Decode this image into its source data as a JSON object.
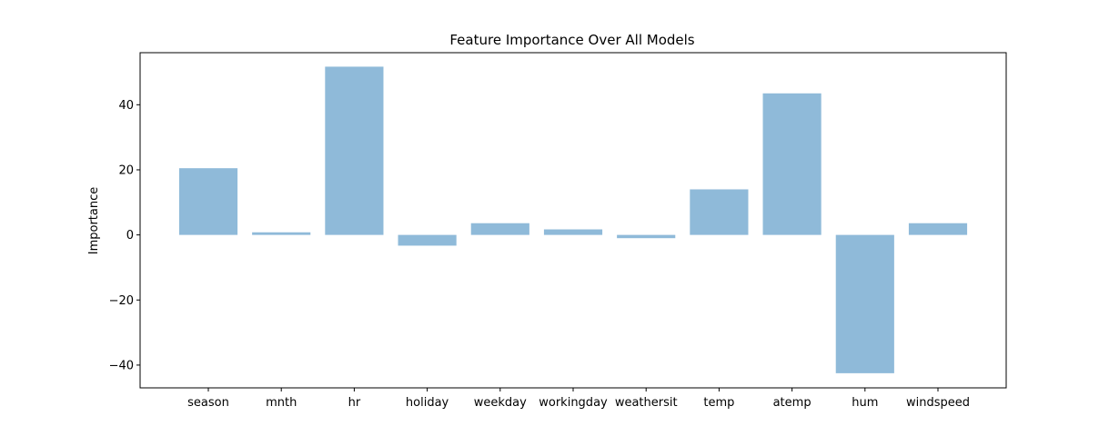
{
  "chart_data": {
    "type": "bar",
    "title": "Feature Importance Over All Models",
    "xlabel": "",
    "ylabel": "Importance",
    "categories": [
      "season",
      "mnth",
      "hr",
      "holiday",
      "weekday",
      "workingday",
      "weathersit",
      "temp",
      "atemp",
      "hum",
      "windspeed"
    ],
    "values": [
      20.5,
      0.8,
      51.7,
      -3.3,
      3.6,
      1.7,
      -1.0,
      14.0,
      43.5,
      -42.5,
      3.6
    ],
    "ylim": [
      -47,
      56
    ],
    "yticks": [
      -40,
      -20,
      0,
      20,
      40
    ],
    "ytick_labels": [
      "−40",
      "−20",
      "0",
      "20",
      "40"
    ],
    "grid": false,
    "bar_color": "#8fbad9"
  }
}
